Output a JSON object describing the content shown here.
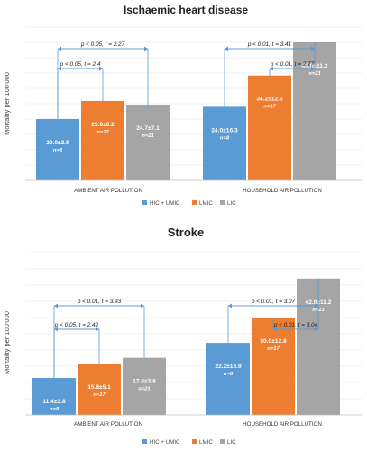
{
  "chart_data": [
    {
      "type": "bar",
      "title": "Ischaemic heart disease",
      "ylabel": "Mortality per 100'000",
      "categories": [
        "AMBIENT AIR POLLUTION",
        "HOUSEHOLD AIR POLLUTION"
      ],
      "series": [
        {
          "name": "HIC + UMIC",
          "color": "#5b9bd5",
          "values": [
            20.0,
            24.0
          ],
          "labels": [
            "20.0±3.9",
            "24.0±16.3"
          ],
          "n": [
            "n=8",
            "n=8"
          ]
        },
        {
          "name": "LMIC",
          "color": "#ed7d31",
          "values": [
            25.9,
            34.2
          ],
          "labels": [
            "25.9±6.2",
            "34.2±12.5"
          ],
          "n": [
            "n=17",
            "n=17"
          ]
        },
        {
          "name": "LIC",
          "color": "#a5a5a5",
          "values": [
            24.7,
            45.0
          ],
          "labels": [
            "24.7±7.1",
            "45.0±11.2"
          ],
          "n": [
            "n=21",
            "n=21"
          ]
        }
      ],
      "ylim": [
        0,
        50
      ],
      "grid": true,
      "legend": "bottom",
      "annotations": [
        {
          "text": "p < 0.05, t = 2.27",
          "category": 0,
          "from": 0,
          "to": 2,
          "level": 2
        },
        {
          "text": "p < 0.05, t = 2.4",
          "category": 0,
          "from": 0,
          "to": 1,
          "level": 1
        },
        {
          "text": "p < 0.01, t = 3.41",
          "category": 1,
          "from": 0,
          "to": 2,
          "level": 2
        },
        {
          "text": "p < 0.01, t = 2.77",
          "category": 1,
          "from": 1,
          "to": 2,
          "level": 1
        }
      ]
    },
    {
      "type": "bar",
      "title": "Stroke",
      "ylabel": "Mortality per 100'000",
      "categories": [
        "AMBIENT AIR POLLUTION",
        "HOUSEHOLD AIR POLLUTION"
      ],
      "series": [
        {
          "name": "HIC + UMIC",
          "color": "#5b9bd5",
          "values": [
            11.4,
            22.2
          ],
          "labels": [
            "11.4±3.8",
            "22.2±16.9"
          ],
          "n": [
            "n=8",
            "n=8"
          ]
        },
        {
          "name": "LMIC",
          "color": "#ed7d31",
          "values": [
            15.8,
            30.0
          ],
          "labels": [
            "15.8±5.1",
            "30.0±12.8"
          ],
          "n": [
            "n=17",
            "n=17"
          ]
        },
        {
          "name": "LIC",
          "color": "#a5a5a5",
          "values": [
            17.6,
            42.0
          ],
          "labels": [
            "17.6±3.8",
            "42.0±11.2"
          ],
          "n": [
            "n=21",
            "n=21"
          ]
        }
      ],
      "ylim": [
        0,
        50
      ],
      "grid": true,
      "legend": "bottom",
      "annotations": [
        {
          "text": "p < 0.01, t = 3.93",
          "category": 0,
          "from": 0,
          "to": 2,
          "level": 2
        },
        {
          "text": "p < 0.05, t = 2.42",
          "category": 0,
          "from": 0,
          "to": 1,
          "level": 1
        },
        {
          "text": "p < 0.01, t = 3.07",
          "category": 1,
          "from": 0,
          "to": 2,
          "level": 2
        },
        {
          "text": "p < 0.01, t = 3.04",
          "category": 1,
          "from": 1,
          "to": 2,
          "level": 1
        }
      ]
    }
  ]
}
